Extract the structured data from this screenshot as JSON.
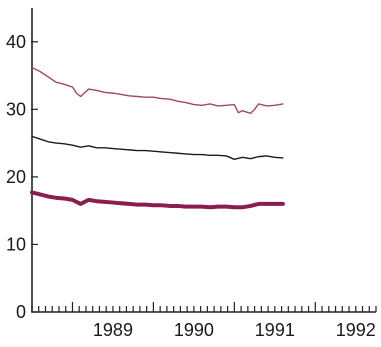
{
  "chart_data": {
    "type": "line",
    "title": "",
    "xlabel": "",
    "ylabel": "",
    "xlim": [
      1988.5,
      1992.75
    ],
    "ylim": [
      0,
      45
    ],
    "x_ticks": [
      1989,
      1990,
      1991,
      1992
    ],
    "y_ticks": [
      0,
      10,
      20,
      30,
      40
    ],
    "minor_x_ticks_per_year": 12,
    "grid": false,
    "legend": "none",
    "series": [
      {
        "color": "#9e4a62",
        "stroke": "thin",
        "x": [
          1988.5,
          1988.6,
          1988.7,
          1988.8,
          1988.9,
          1989.0,
          1989.05,
          1989.1,
          1989.2,
          1989.3,
          1989.4,
          1989.5,
          1989.6,
          1989.7,
          1989.8,
          1989.9,
          1990.0,
          1990.1,
          1990.2,
          1990.3,
          1990.4,
          1990.5,
          1990.6,
          1990.7,
          1990.8,
          1990.9,
          1991.0,
          1991.05,
          1991.1,
          1991.15,
          1991.2,
          1991.25,
          1991.3,
          1991.4,
          1991.5,
          1991.6
        ],
        "y": [
          36.2,
          35.6,
          34.8,
          34.0,
          33.7,
          33.3,
          32.4,
          31.9,
          33.0,
          32.8,
          32.5,
          32.4,
          32.2,
          32.0,
          31.9,
          31.8,
          31.8,
          31.6,
          31.5,
          31.2,
          31.0,
          30.7,
          30.6,
          30.8,
          30.5,
          30.6,
          30.7,
          29.5,
          29.8,
          29.6,
          29.4,
          30.0,
          30.8,
          30.5,
          30.6,
          30.8
        ]
      },
      {
        "color": "#1c1c1c",
        "stroke": "thin",
        "x": [
          1988.5,
          1988.6,
          1988.7,
          1988.8,
          1988.9,
          1989.0,
          1989.1,
          1989.2,
          1989.3,
          1989.4,
          1989.5,
          1989.6,
          1989.7,
          1989.8,
          1989.9,
          1990.0,
          1990.1,
          1990.2,
          1990.3,
          1990.4,
          1990.5,
          1990.6,
          1990.7,
          1990.8,
          1990.9,
          1991.0,
          1991.1,
          1991.2,
          1991.3,
          1991.4,
          1991.5,
          1991.6
        ],
        "y": [
          26.0,
          25.6,
          25.2,
          25.0,
          24.9,
          24.7,
          24.4,
          24.6,
          24.3,
          24.3,
          24.2,
          24.1,
          24.0,
          23.9,
          23.9,
          23.8,
          23.7,
          23.6,
          23.5,
          23.4,
          23.3,
          23.3,
          23.2,
          23.2,
          23.1,
          22.6,
          22.9,
          22.7,
          23.0,
          23.1,
          22.9,
          22.8
        ]
      },
      {
        "color": "#8b1e4e",
        "stroke": "thick",
        "x": [
          1988.5,
          1988.6,
          1988.7,
          1988.8,
          1988.9,
          1989.0,
          1989.05,
          1989.1,
          1989.2,
          1989.3,
          1989.4,
          1989.5,
          1989.6,
          1989.7,
          1989.8,
          1989.9,
          1990.0,
          1990.1,
          1990.2,
          1990.3,
          1990.4,
          1990.5,
          1990.6,
          1990.7,
          1990.8,
          1990.9,
          1991.0,
          1991.1,
          1991.2,
          1991.3,
          1991.4,
          1991.5,
          1991.6
        ],
        "y": [
          17.7,
          17.4,
          17.1,
          16.9,
          16.8,
          16.6,
          16.3,
          16.0,
          16.6,
          16.4,
          16.3,
          16.2,
          16.1,
          16.0,
          15.9,
          15.9,
          15.8,
          15.8,
          15.7,
          15.7,
          15.6,
          15.6,
          15.6,
          15.5,
          15.6,
          15.6,
          15.5,
          15.5,
          15.7,
          16.0,
          16.0,
          16.0,
          16.0
        ]
      }
    ]
  }
}
